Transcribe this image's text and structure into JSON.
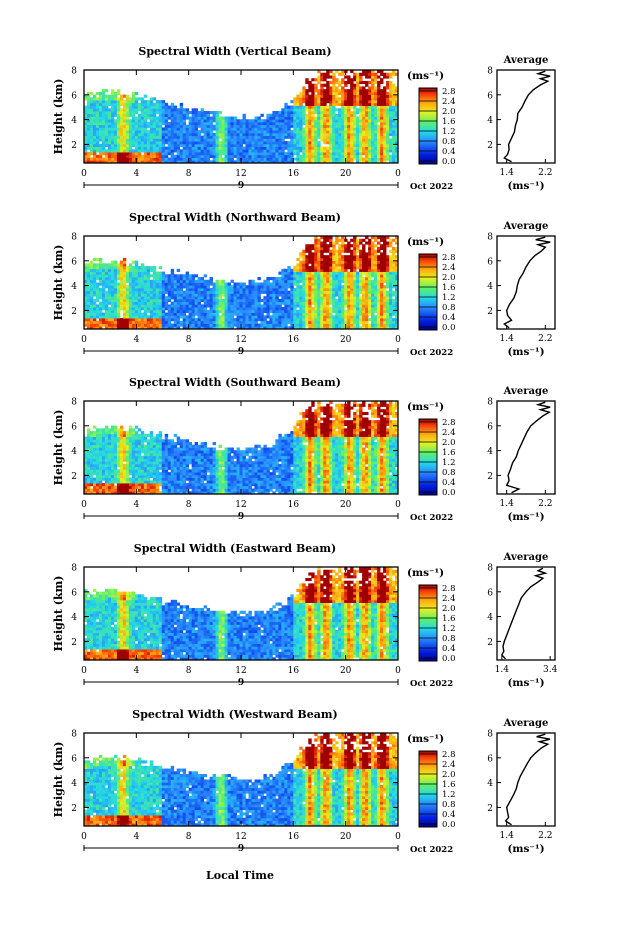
{
  "figure": {
    "xlabel": "Local Time",
    "date_label": "Oct 2022",
    "day_label": "9",
    "colorbar_unit": "(ms⁻¹)",
    "colorbar_ticks": [
      "0.0",
      "0.4",
      "0.8",
      "1.2",
      "1.6",
      "2.0",
      "2.4",
      "2.8"
    ],
    "average_title": "Average",
    "average_xlabel": "(ms⁻¹)",
    "ylabel": "Height (km)"
  },
  "chart_data": [
    {
      "type": "heatmap",
      "title": "Spectral Width (Vertical Beam)",
      "xlabel": "Local Time",
      "ylabel": "Height (km)",
      "x_ticks": [
        "0",
        "4",
        "8",
        "12",
        "16",
        "20",
        "0"
      ],
      "xlim": [
        0,
        24
      ],
      "y_ticks": [
        "2",
        "4",
        "6",
        "8"
      ],
      "ylim": [
        0.5,
        8
      ],
      "colorbar": {
        "label": "(ms⁻¹)",
        "range": [
          0.0,
          2.8
        ],
        "ticks": [
          "0.0",
          "0.4",
          "0.8",
          "1.2",
          "1.6",
          "2.0",
          "2.4",
          "2.8"
        ]
      },
      "upper_boundary_km": [
        [
          0,
          6.0
        ],
        [
          2,
          6.2
        ],
        [
          4,
          6.0
        ],
        [
          6,
          5.4
        ],
        [
          8,
          5.0
        ],
        [
          10,
          4.5
        ],
        [
          12,
          4.2
        ],
        [
          14,
          4.3
        ],
        [
          16,
          5.5
        ],
        [
          17,
          7.2
        ],
        [
          18,
          8.0
        ],
        [
          24,
          8.0
        ]
      ],
      "average_profile": {
        "title": "Average",
        "xlabel": "(ms⁻¹)",
        "x_ticks": [
          "1.4",
          "2.2"
        ],
        "xlim": [
          1.2,
          2.4
        ],
        "y_ticks": [
          "2",
          "4",
          "6",
          "8"
        ],
        "ylim": [
          0.5,
          8
        ],
        "height_km": [
          0.6,
          0.9,
          1.2,
          1.6,
          2.0,
          2.5,
          3.0,
          3.5,
          4.0,
          4.5,
          5.0,
          5.5,
          6.0,
          6.4,
          6.8,
          7.1,
          7.3,
          7.5,
          7.7,
          7.9
        ],
        "width_ms": [
          1.5,
          1.35,
          1.42,
          1.45,
          1.44,
          1.5,
          1.56,
          1.58,
          1.62,
          1.63,
          1.72,
          1.78,
          1.85,
          1.95,
          2.1,
          2.25,
          2.1,
          2.3,
          2.05,
          2.2
        ]
      }
    },
    {
      "type": "heatmap",
      "title": "Spectral Width (Northward Beam)",
      "xlabel": "Local Time",
      "ylabel": "Height (km)",
      "x_ticks": [
        "0",
        "4",
        "8",
        "12",
        "16",
        "20",
        "0"
      ],
      "xlim": [
        0,
        24
      ],
      "y_ticks": [
        "2",
        "4",
        "6",
        "8"
      ],
      "ylim": [
        0.5,
        8
      ],
      "colorbar": {
        "label": "(ms⁻¹)",
        "range": [
          0.0,
          2.8
        ],
        "ticks": [
          "0.0",
          "0.4",
          "0.8",
          "1.2",
          "1.6",
          "2.0",
          "2.4",
          "2.8"
        ]
      },
      "upper_boundary_km": [
        [
          0,
          5.8
        ],
        [
          2,
          6.0
        ],
        [
          4,
          5.8
        ],
        [
          6,
          5.3
        ],
        [
          8,
          4.9
        ],
        [
          10,
          4.4
        ],
        [
          12,
          4.2
        ],
        [
          14,
          4.4
        ],
        [
          16,
          5.6
        ],
        [
          17,
          7.3
        ],
        [
          18,
          8.0
        ],
        [
          24,
          8.0
        ]
      ],
      "average_profile": {
        "title": "Average",
        "xlabel": "(ms⁻¹)",
        "x_ticks": [
          "1.4",
          "2.2"
        ],
        "xlim": [
          1.2,
          2.4
        ],
        "y_ticks": [
          "2",
          "4",
          "6",
          "8"
        ],
        "ylim": [
          0.5,
          8
        ],
        "height_km": [
          0.6,
          0.9,
          1.2,
          1.6,
          2.0,
          2.5,
          3.0,
          3.5,
          4.0,
          4.5,
          5.0,
          5.5,
          6.0,
          6.4,
          6.8,
          7.1,
          7.3,
          7.5,
          7.7,
          7.9
        ],
        "width_ms": [
          1.45,
          1.35,
          1.5,
          1.42,
          1.4,
          1.46,
          1.55,
          1.6,
          1.62,
          1.66,
          1.74,
          1.8,
          1.88,
          1.98,
          2.12,
          2.2,
          2.05,
          2.3,
          2.0,
          2.2
        ]
      }
    },
    {
      "type": "heatmap",
      "title": "Spectral Width (Southward Beam)",
      "xlabel": "Local Time",
      "ylabel": "Height (km)",
      "x_ticks": [
        "0",
        "4",
        "8",
        "12",
        "16",
        "20",
        "0"
      ],
      "xlim": [
        0,
        24
      ],
      "y_ticks": [
        "2",
        "4",
        "6",
        "8"
      ],
      "ylim": [
        0.5,
        8
      ],
      "colorbar": {
        "label": "(ms⁻¹)",
        "range": [
          0.0,
          2.8
        ],
        "ticks": [
          "0.0",
          "0.4",
          "0.8",
          "1.2",
          "1.6",
          "2.0",
          "2.4",
          "2.8"
        ]
      },
      "upper_boundary_km": [
        [
          0,
          5.7
        ],
        [
          2,
          5.9
        ],
        [
          4,
          5.7
        ],
        [
          6,
          5.2
        ],
        [
          8,
          4.8
        ],
        [
          10,
          4.4
        ],
        [
          12,
          4.1
        ],
        [
          14,
          4.3
        ],
        [
          16,
          5.8
        ],
        [
          17,
          7.4
        ],
        [
          18,
          8.0
        ],
        [
          24,
          8.0
        ]
      ],
      "average_profile": {
        "title": "Average",
        "xlabel": "(ms⁻¹)",
        "x_ticks": [
          "1.4",
          "2.2"
        ],
        "xlim": [
          1.2,
          2.4
        ],
        "y_ticks": [
          "2",
          "4",
          "6",
          "8"
        ],
        "ylim": [
          0.5,
          8
        ],
        "height_km": [
          0.6,
          0.9,
          1.2,
          1.6,
          2.0,
          2.5,
          3.0,
          3.5,
          4.0,
          4.5,
          5.0,
          5.5,
          6.0,
          6.4,
          6.8,
          7.1,
          7.3,
          7.5,
          7.7,
          7.9
        ],
        "width_ms": [
          1.5,
          1.65,
          1.4,
          1.45,
          1.43,
          1.48,
          1.52,
          1.6,
          1.64,
          1.7,
          1.76,
          1.82,
          1.9,
          2.02,
          2.15,
          2.28,
          2.1,
          2.3,
          2.05,
          2.2
        ]
      }
    },
    {
      "type": "heatmap",
      "title": "Spectral Width (Eastward Beam)",
      "xlabel": "Local Time",
      "ylabel": "Height (km)",
      "x_ticks": [
        "0",
        "4",
        "8",
        "12",
        "16",
        "20",
        "0"
      ],
      "xlim": [
        0,
        24
      ],
      "y_ticks": [
        "2",
        "4",
        "6",
        "8"
      ],
      "ylim": [
        0.5,
        8
      ],
      "colorbar": {
        "label": "(ms⁻¹)",
        "range": [
          0.0,
          2.8
        ],
        "ticks": [
          "0.0",
          "0.4",
          "0.8",
          "1.2",
          "1.6",
          "2.0",
          "2.4",
          "2.8"
        ]
      },
      "upper_boundary_km": [
        [
          0,
          5.9
        ],
        [
          2,
          6.1
        ],
        [
          4,
          5.9
        ],
        [
          6,
          5.3
        ],
        [
          8,
          4.9
        ],
        [
          10,
          4.5
        ],
        [
          12,
          4.2
        ],
        [
          14,
          4.4
        ],
        [
          16,
          5.6
        ],
        [
          17,
          7.2
        ],
        [
          18,
          8.0
        ],
        [
          24,
          8.0
        ]
      ],
      "average_profile": {
        "title": "Average",
        "xlabel": "(ms⁻¹)",
        "x_ticks": [
          "1.4",
          "3.4"
        ],
        "xlim": [
          1.2,
          3.6
        ],
        "y_ticks": [
          "2",
          "4",
          "6",
          "8"
        ],
        "ylim": [
          0.5,
          8
        ],
        "height_km": [
          0.6,
          0.9,
          1.2,
          1.6,
          2.0,
          2.5,
          3.0,
          3.5,
          4.0,
          4.5,
          5.0,
          5.5,
          6.0,
          6.4,
          6.8,
          7.1,
          7.3,
          7.5,
          7.7,
          7.9
        ],
        "width_ms": [
          1.55,
          1.4,
          1.48,
          1.45,
          1.5,
          1.6,
          1.7,
          1.8,
          1.9,
          2.0,
          2.1,
          2.2,
          2.4,
          2.6,
          2.9,
          3.1,
          2.8,
          3.2,
          2.9,
          3.1
        ]
      }
    },
    {
      "type": "heatmap",
      "title": "Spectral Width (Westward Beam)",
      "xlabel": "Local Time",
      "ylabel": "Height (km)",
      "x_ticks": [
        "0",
        "4",
        "8",
        "12",
        "16",
        "20",
        "0"
      ],
      "xlim": [
        0,
        24
      ],
      "y_ticks": [
        "2",
        "4",
        "6",
        "8"
      ],
      "ylim": [
        0.5,
        8
      ],
      "colorbar": {
        "label": "(ms⁻¹)",
        "range": [
          0.0,
          2.8
        ],
        "ticks": [
          "0.0",
          "0.4",
          "0.8",
          "1.2",
          "1.6",
          "2.0",
          "2.4",
          "2.8"
        ]
      },
      "upper_boundary_km": [
        [
          0,
          5.8
        ],
        [
          2,
          6.0
        ],
        [
          4,
          5.8
        ],
        [
          6,
          5.3
        ],
        [
          8,
          4.9
        ],
        [
          10,
          4.5
        ],
        [
          12,
          4.2
        ],
        [
          14,
          4.4
        ],
        [
          16,
          5.7
        ],
        [
          17,
          7.3
        ],
        [
          18,
          8.0
        ],
        [
          24,
          8.0
        ]
      ],
      "average_profile": {
        "title": "Average",
        "xlabel": "(ms⁻¹)",
        "x_ticks": [
          "1.4",
          "2.2"
        ],
        "xlim": [
          1.2,
          2.4
        ],
        "y_ticks": [
          "2",
          "4",
          "6",
          "8"
        ],
        "ylim": [
          0.5,
          8
        ],
        "height_km": [
          0.6,
          0.9,
          1.2,
          1.6,
          2.0,
          2.5,
          3.0,
          3.5,
          4.0,
          4.5,
          5.0,
          5.5,
          6.0,
          6.4,
          6.8,
          7.1,
          7.3,
          7.5,
          7.7,
          7.9
        ],
        "width_ms": [
          1.5,
          1.38,
          1.44,
          1.42,
          1.4,
          1.47,
          1.54,
          1.6,
          1.63,
          1.68,
          1.75,
          1.82,
          1.9,
          2.0,
          2.12,
          2.25,
          2.08,
          2.3,
          2.02,
          2.2
        ]
      }
    }
  ]
}
